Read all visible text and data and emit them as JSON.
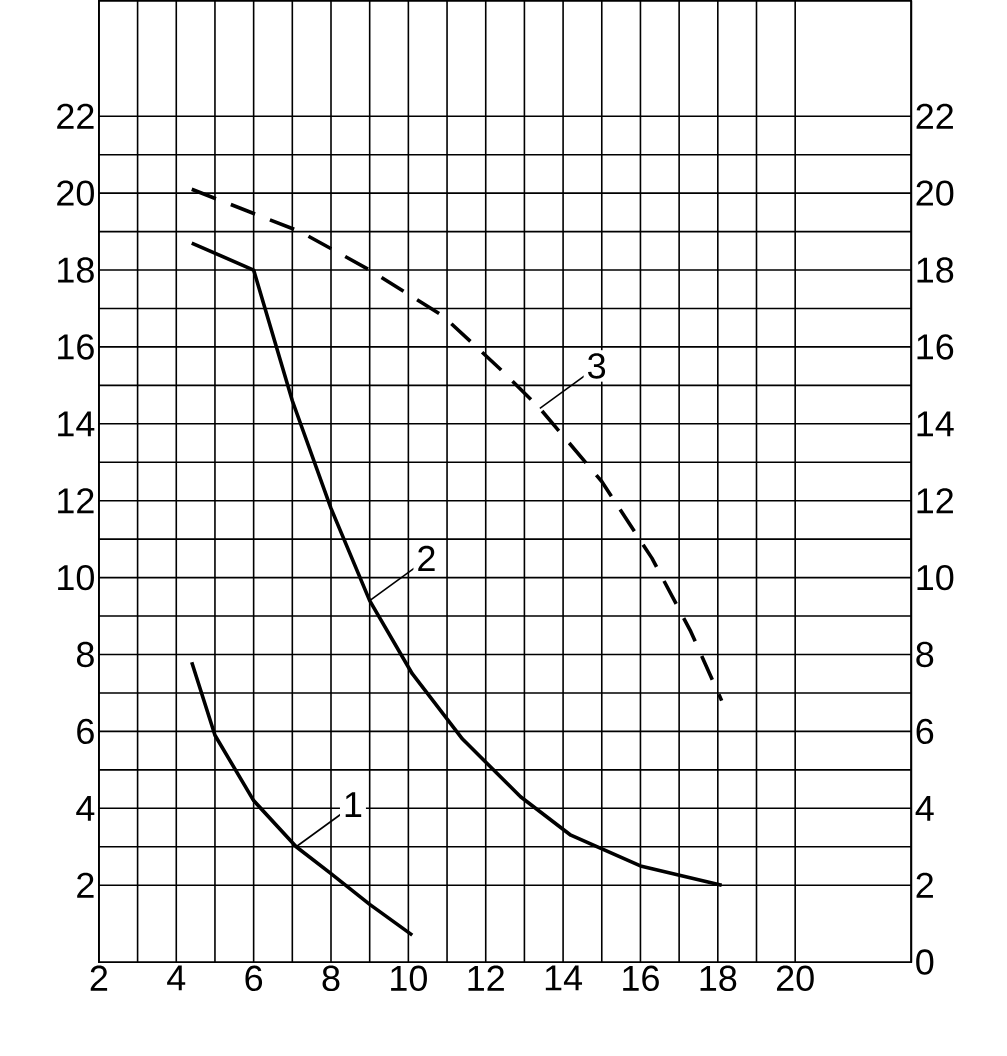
{
  "chart_data": {
    "type": "line",
    "xlim": [
      2,
      23
    ],
    "ylim": [
      0,
      25
    ],
    "y2lim": [
      0,
      25
    ],
    "xticks": [
      2,
      4,
      6,
      8,
      10,
      12,
      14,
      16,
      18,
      20
    ],
    "yticks": [
      2,
      4,
      6,
      8,
      10,
      12,
      14,
      16,
      18,
      20,
      22
    ],
    "y2ticks": [
      0,
      2,
      4,
      6,
      8,
      10,
      12,
      14,
      16,
      18,
      20,
      22
    ],
    "grid": true,
    "series": [
      {
        "color": "#000000",
        "line_style": "solid",
        "x": [
          4.4,
          5.0,
          6.0,
          7.1,
          8.0,
          9.0,
          10.1
        ],
        "values": [
          7.8,
          5.9,
          4.2,
          3.0,
          2.3,
          1.5,
          0.7
        ]
      },
      {
        "color": "#000000",
        "line_style": "solid",
        "x": [
          4.4,
          6.0,
          7.0,
          8.0,
          9.0,
          10.1,
          11.4,
          12.9,
          14.2,
          16.0,
          18.1
        ],
        "values": [
          18.7,
          18.0,
          14.6,
          11.8,
          9.4,
          7.5,
          5.8,
          4.3,
          3.3,
          2.5,
          2.0
        ]
      },
      {
        "color": "#000000",
        "line_style": "dashed",
        "x": [
          4.4,
          7.2,
          9.0,
          10.9,
          12.4,
          13.4,
          15.0,
          16.3,
          17.3,
          18.1
        ],
        "values": [
          20.1,
          19.0,
          18.0,
          16.8,
          15.4,
          14.4,
          12.5,
          10.5,
          8.6,
          6.8
        ]
      }
    ],
    "annotations": [
      {
        "text": "1",
        "x": 7.1,
        "y": 3.0
      },
      {
        "text": "2",
        "x": 9.0,
        "y": 9.4
      },
      {
        "text": "3",
        "x": 13.4,
        "y": 14.4
      }
    ]
  }
}
